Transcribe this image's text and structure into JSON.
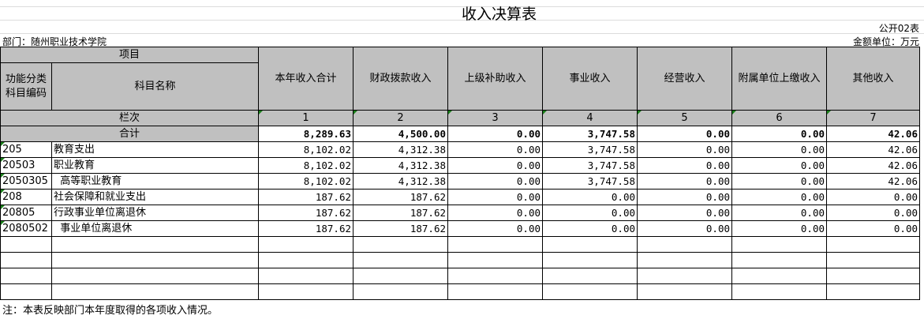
{
  "title": "收入决算表",
  "form_no": "公开02表",
  "department": "部门：随州职业技术学院",
  "unit": "金额单位：万元",
  "header": {
    "project": "项目",
    "code": "功能分类科目编码",
    "name": "科目名称",
    "columns": [
      "本年收入合计",
      "财政拨款收入",
      "上级补助收入",
      "事业收入",
      "经营收入",
      "附属单位上缴收入",
      "其他收入"
    ],
    "row_label": "栏次",
    "col_numbers": [
      "1",
      "2",
      "3",
      "4",
      "5",
      "6",
      "7"
    ]
  },
  "total": {
    "label": "合计",
    "values": [
      "8,289.63",
      "4,500.00",
      "0.00",
      "3,747.58",
      "0.00",
      "0.00",
      "42.06"
    ]
  },
  "rows": [
    {
      "code": "205",
      "name": "教育支出",
      "values": [
        "8,102.02",
        "4,312.38",
        "0.00",
        "3,747.58",
        "0.00",
        "0.00",
        "42.06"
      ]
    },
    {
      "code": "20503",
      "name": "职业教育",
      "values": [
        "8,102.02",
        "4,312.38",
        "0.00",
        "3,747.58",
        "0.00",
        "0.00",
        "42.06"
      ]
    },
    {
      "code": "2050305",
      "name": "  高等职业教育",
      "values": [
        "8,102.02",
        "4,312.38",
        "0.00",
        "3,747.58",
        "0.00",
        "0.00",
        "42.06"
      ]
    },
    {
      "code": "208",
      "name": "社会保障和就业支出",
      "values": [
        "187.62",
        "187.62",
        "0.00",
        "0.00",
        "0.00",
        "0.00",
        "0.00"
      ]
    },
    {
      "code": "20805",
      "name": "行政事业单位离退休",
      "values": [
        "187.62",
        "187.62",
        "0.00",
        "0.00",
        "0.00",
        "0.00",
        "0.00"
      ]
    },
    {
      "code": "2080502",
      "name": "  事业单位离退休",
      "values": [
        "187.62",
        "187.62",
        "0.00",
        "0.00",
        "0.00",
        "0.00",
        "0.00"
      ]
    }
  ],
  "note": "注：本表反映部门本年度取得的各项收入情况。"
}
